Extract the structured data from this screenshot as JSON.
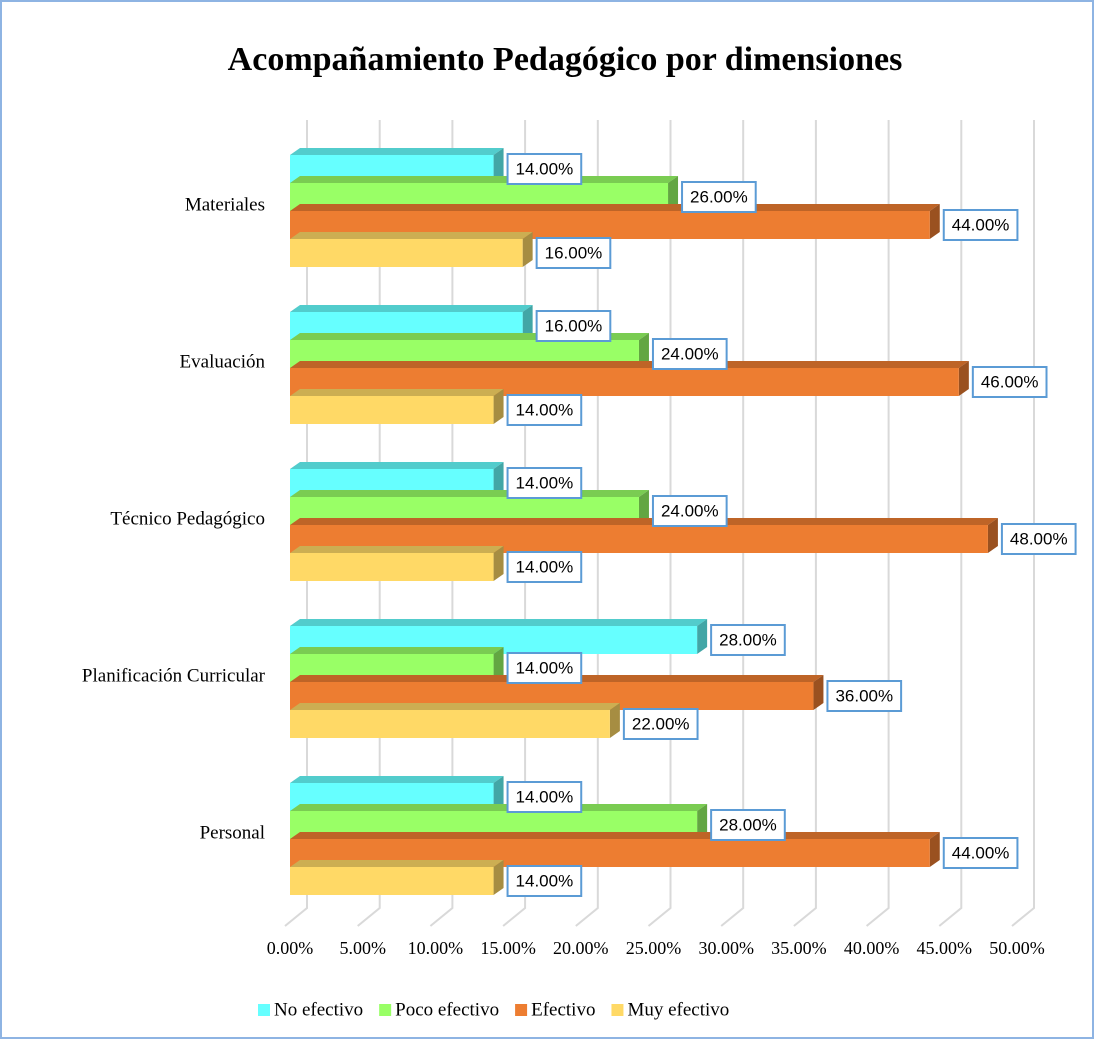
{
  "chart_data": {
    "type": "bar",
    "orientation": "horizontal",
    "title": "Acompañamiento Pedagógico por dimensiones",
    "categories": [
      "Personal",
      "Planificación Curricular",
      "Técnico Pedagógico",
      "Evaluación",
      "Materiales"
    ],
    "series": [
      {
        "name": "No efectivo",
        "color": "#66ffff",
        "values": [
          14,
          28,
          14,
          16,
          14
        ],
        "value_labels": [
          "14.00%",
          "28.00%",
          "14.00%",
          "16.00%",
          "14.00%"
        ]
      },
      {
        "name": "Poco efectivo",
        "color": "#99ff66",
        "values": [
          28,
          14,
          24,
          24,
          26
        ],
        "value_labels": [
          "28.00%",
          "14.00%",
          "24.00%",
          "24.00%",
          "26.00%"
        ]
      },
      {
        "name": "Efectivo",
        "color": "#ed7d31",
        "values": [
          44,
          36,
          48,
          46,
          44
        ],
        "value_labels": [
          "44.00%",
          "36.00%",
          "48.00%",
          "46.00%",
          "44.00%"
        ]
      },
      {
        "name": "Muy efectivo",
        "color": "#ffd966",
        "values": [
          14,
          22,
          14,
          14,
          16
        ],
        "value_labels": [
          "14.00%",
          "22.00%",
          "14.00%",
          "14.00%",
          "16.00%"
        ]
      }
    ],
    "xlim": [
      0,
      50
    ],
    "xticks": [
      {
        "value": 0,
        "label": "0.00%"
      },
      {
        "value": 5,
        "label": "5.00%"
      },
      {
        "value": 10,
        "label": "10.00%"
      },
      {
        "value": 15,
        "label": "15.00%"
      },
      {
        "value": 20,
        "label": "20.00%"
      },
      {
        "value": 25,
        "label": "25.00%"
      },
      {
        "value": 30,
        "label": "30.00%"
      },
      {
        "value": 35,
        "label": "35.00%"
      },
      {
        "value": 40,
        "label": "40.00%"
      },
      {
        "value": 45,
        "label": "45.00%"
      },
      {
        "value": 50,
        "label": "50.00%"
      }
    ],
    "grid": true,
    "legend": "bottom"
  }
}
